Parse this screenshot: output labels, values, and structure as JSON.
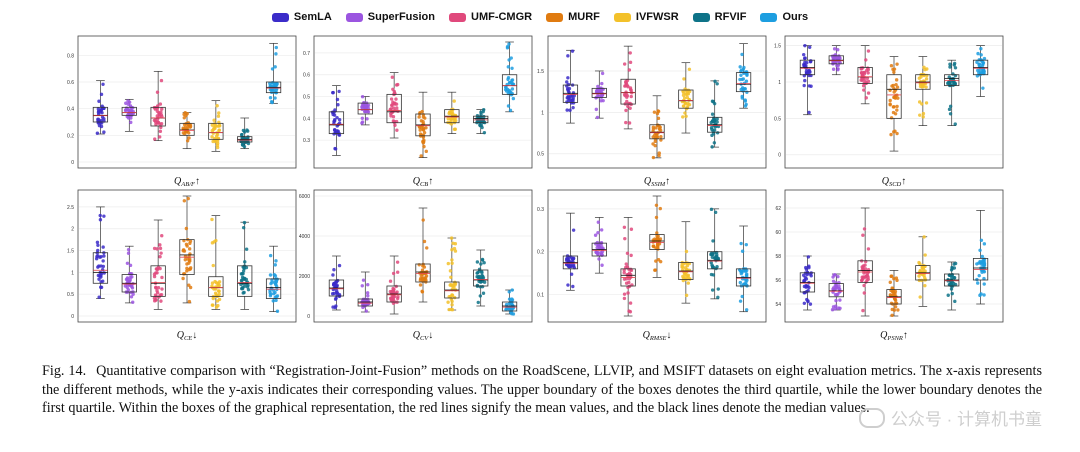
{
  "legend": [
    {
      "name": "SemLA",
      "color": "#3b2cc9"
    },
    {
      "name": "SuperFusion",
      "color": "#9b55e0"
    },
    {
      "name": "UMF-CMGR",
      "color": "#e0497c"
    },
    {
      "name": "MURF",
      "color": "#e07b10"
    },
    {
      "name": "IVFWSR",
      "color": "#f3c12a"
    },
    {
      "name": "RFVIF",
      "color": "#0e7388"
    },
    {
      "name": "Ours",
      "color": "#1d9ee0"
    }
  ],
  "chart_data": [
    {
      "type": "box",
      "metric": "Q_AB/F",
      "arrow": "↑",
      "ylim": [
        0,
        0.9
      ],
      "ticks": [
        0,
        0.2,
        0.4,
        0.6,
        0.8
      ],
      "tick_labels": [
        "0",
        "0.2",
        "0.4",
        "0.6",
        "0.8"
      ],
      "series": [
        [
          0.21,
          0.3,
          0.35,
          0.41,
          0.61
        ],
        [
          0.23,
          0.35,
          0.37,
          0.41,
          0.47
        ],
        [
          0.16,
          0.27,
          0.33,
          0.41,
          0.68
        ],
        [
          0.1,
          0.2,
          0.24,
          0.29,
          0.37
        ],
        [
          0.08,
          0.17,
          0.22,
          0.29,
          0.46
        ],
        [
          0.1,
          0.15,
          0.17,
          0.19,
          0.33
        ],
        [
          0.44,
          0.52,
          0.56,
          0.6,
          0.89
        ]
      ]
    },
    {
      "type": "box",
      "metric": "Q_CB",
      "arrow": "↑",
      "ylim": [
        0.2,
        0.75
      ],
      "ticks": [
        0.3,
        0.4,
        0.5,
        0.6,
        0.7
      ],
      "tick_labels": [
        "0.3",
        "0.4",
        "0.5",
        "0.6",
        "0.7"
      ],
      "series": [
        [
          0.23,
          0.33,
          0.37,
          0.43,
          0.55
        ],
        [
          0.37,
          0.42,
          0.44,
          0.47,
          0.5
        ],
        [
          0.31,
          0.38,
          0.43,
          0.51,
          0.61
        ],
        [
          0.22,
          0.32,
          0.37,
          0.42,
          0.52
        ],
        [
          0.33,
          0.38,
          0.41,
          0.44,
          0.52
        ],
        [
          0.33,
          0.38,
          0.4,
          0.41,
          0.44
        ],
        [
          0.43,
          0.51,
          0.55,
          0.6,
          0.75
        ]
      ]
    },
    {
      "type": "box",
      "metric": "Q_SSIM",
      "arrow": "↑",
      "ylim": [
        0.4,
        1.85
      ],
      "ticks": [
        0.5,
        1.0,
        1.5
      ],
      "tick_labels": [
        "0.5",
        "1",
        "1.5"
      ],
      "series": [
        [
          0.87,
          1.12,
          1.23,
          1.33,
          1.75
        ],
        [
          0.93,
          1.18,
          1.23,
          1.29,
          1.5
        ],
        [
          0.8,
          1.1,
          1.24,
          1.4,
          1.8
        ],
        [
          0.45,
          0.68,
          0.76,
          0.85,
          1.2
        ],
        [
          0.75,
          1.05,
          1.14,
          1.27,
          1.6
        ],
        [
          0.58,
          0.76,
          0.85,
          0.94,
          1.38
        ],
        [
          1.05,
          1.25,
          1.34,
          1.48,
          1.83
        ]
      ]
    },
    {
      "type": "box",
      "metric": "Q_SCD",
      "arrow": "↑",
      "ylim": [
        -0.1,
        1.55
      ],
      "ticks": [
        0,
        0.5,
        1.0,
        1.5
      ],
      "tick_labels": [
        "0",
        "0.5",
        "1",
        "1.5"
      ],
      "series": [
        [
          0.55,
          1.1,
          1.2,
          1.3,
          1.5
        ],
        [
          1.1,
          1.25,
          1.3,
          1.36,
          1.5
        ],
        [
          0.7,
          0.98,
          1.07,
          1.2,
          1.5
        ],
        [
          0.05,
          0.5,
          0.9,
          1.1,
          1.35
        ],
        [
          0.4,
          0.9,
          1.0,
          1.1,
          1.35
        ],
        [
          0.4,
          0.95,
          1.05,
          1.1,
          1.3
        ],
        [
          0.8,
          1.1,
          1.2,
          1.3,
          1.5
        ]
      ]
    },
    {
      "type": "box",
      "metric": "Q_CE",
      "arrow": "↓",
      "ylim": [
        0,
        2.75
      ],
      "ticks": [
        0,
        0.5,
        1.0,
        1.5,
        2.0,
        2.5
      ],
      "tick_labels": [
        "0",
        "0.5",
        "1",
        "1.5",
        "2",
        "2.5"
      ],
      "series": [
        [
          0.4,
          0.75,
          1.0,
          1.45,
          2.5
        ],
        [
          0.3,
          0.55,
          0.75,
          0.95,
          1.6
        ],
        [
          0.15,
          0.45,
          0.75,
          1.15,
          2.2
        ],
        [
          0.3,
          0.95,
          1.4,
          1.75,
          2.75
        ],
        [
          0.15,
          0.45,
          0.65,
          0.9,
          2.3
        ],
        [
          0.15,
          0.45,
          0.75,
          1.15,
          2.15
        ],
        [
          0.1,
          0.4,
          0.65,
          0.85,
          1.6
        ]
      ]
    },
    {
      "type": "box",
      "metric": "Q_CV",
      "arrow": "↓",
      "ylim": [
        0,
        6000
      ],
      "ticks": [
        0,
        2000,
        4000,
        6000
      ],
      "tick_labels": [
        "0",
        "2000",
        "4000",
        "6000"
      ],
      "series": [
        [
          300,
          1000,
          1400,
          1800,
          3000
        ],
        [
          200,
          500,
          700,
          850,
          2200
        ],
        [
          100,
          700,
          1100,
          1500,
          3000
        ],
        [
          700,
          1700,
          2200,
          2600,
          5400
        ],
        [
          300,
          900,
          1300,
          1700,
          3900
        ],
        [
          500,
          1500,
          1800,
          2300,
          3300
        ],
        [
          100,
          250,
          500,
          700,
          1300
        ]
      ]
    },
    {
      "type": "box",
      "metric": "Q_RMSE",
      "arrow": "↓",
      "ylim": [
        0.05,
        0.33
      ],
      "ticks": [
        0.1,
        0.2,
        0.3
      ],
      "tick_labels": [
        "0.1",
        "0.2",
        "0.3"
      ],
      "series": [
        [
          0.11,
          0.16,
          0.175,
          0.19,
          0.29
        ],
        [
          0.15,
          0.19,
          0.205,
          0.22,
          0.28
        ],
        [
          0.05,
          0.12,
          0.145,
          0.16,
          0.28
        ],
        [
          0.14,
          0.205,
          0.225,
          0.24,
          0.33
        ],
        [
          0.08,
          0.135,
          0.155,
          0.175,
          0.27
        ],
        [
          0.09,
          0.16,
          0.18,
          0.2,
          0.3
        ],
        [
          0.06,
          0.12,
          0.14,
          0.16,
          0.26
        ]
      ]
    },
    {
      "type": "box",
      "metric": "Q_PSNR",
      "arrow": "↑",
      "ylim": [
        53,
        63
      ],
      "ticks": [
        54,
        56,
        58,
        60,
        62
      ],
      "tick_labels": [
        "54",
        "56",
        "58",
        "60",
        "62"
      ],
      "series": [
        [
          53.5,
          55.0,
          55.8,
          56.6,
          58.0
        ],
        [
          53.5,
          54.6,
          55.1,
          55.7,
          56.5
        ],
        [
          53.0,
          55.8,
          56.8,
          57.6,
          62.0
        ],
        [
          53.0,
          54.0,
          54.6,
          55.2,
          56.8
        ],
        [
          53.8,
          56.0,
          56.6,
          57.2,
          59.6
        ],
        [
          53.5,
          55.5,
          56.0,
          56.5,
          57.5
        ],
        [
          54.0,
          56.0,
          57.0,
          57.8,
          61.8
        ]
      ]
    }
  ],
  "caption": {
    "label": "Fig. 14.",
    "text": "Quantitative comparison with “Registration-Joint-Fusion” methods on the RoadScene, LLVIP, and MSIFT datasets on eight evaluation metrics. The x-axis represents the different methods, while the y-axis indicates their corresponding values. The upper boundary of the boxes denotes the third quartile, while the lower boundary denotes the first quartile. Within the boxes of the graphical representation, the red lines signify the mean values, and the black lines denote the median values."
  },
  "watermark": "公众号 · 计算机书童"
}
